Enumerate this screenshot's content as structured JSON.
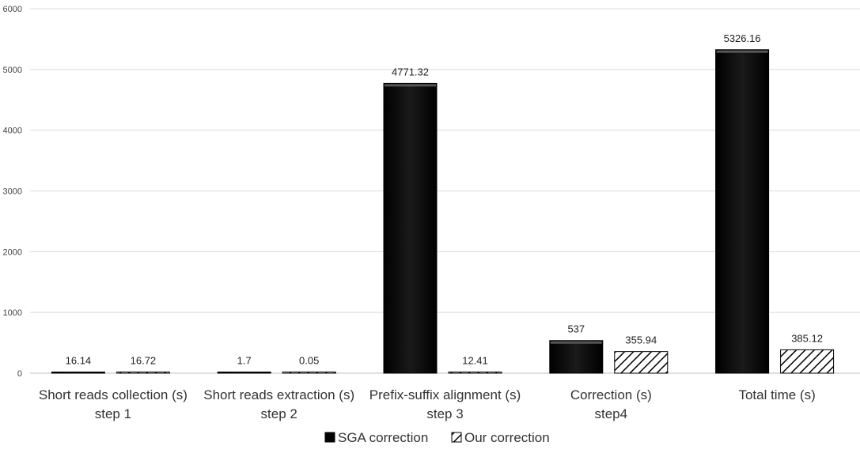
{
  "chart_data": {
    "type": "bar",
    "title": "",
    "xlabel": "",
    "ylabel": "",
    "ylim": [
      0,
      6000
    ],
    "yticks": [
      0,
      1000,
      2000,
      3000,
      4000,
      5000,
      6000
    ],
    "grid": true,
    "legend_position": "bottom",
    "categories": [
      [
        "Short reads collection (s)",
        "step 1"
      ],
      [
        "Short reads extraction (s)",
        "step 2"
      ],
      [
        "Prefix-suffix alignment (s)",
        "step 3"
      ],
      [
        "Correction (s)",
        "step4"
      ],
      [
        "Total time (s)"
      ]
    ],
    "series": [
      {
        "name": "SGA correction",
        "fill": "solid",
        "color": "#000000",
        "values": [
          16.14,
          1.7,
          4771.32,
          537,
          5326.16
        ],
        "labels": [
          "16.14",
          "1.7",
          "4771.32",
          "537",
          "5326.16"
        ]
      },
      {
        "name": "Our correction",
        "fill": "hatched",
        "color": "#000000",
        "values": [
          16.72,
          0.05,
          12.41,
          355.94,
          385.12
        ],
        "labels": [
          "16.72",
          "0.05",
          "12.41",
          "355.94",
          "385.12"
        ]
      }
    ]
  }
}
